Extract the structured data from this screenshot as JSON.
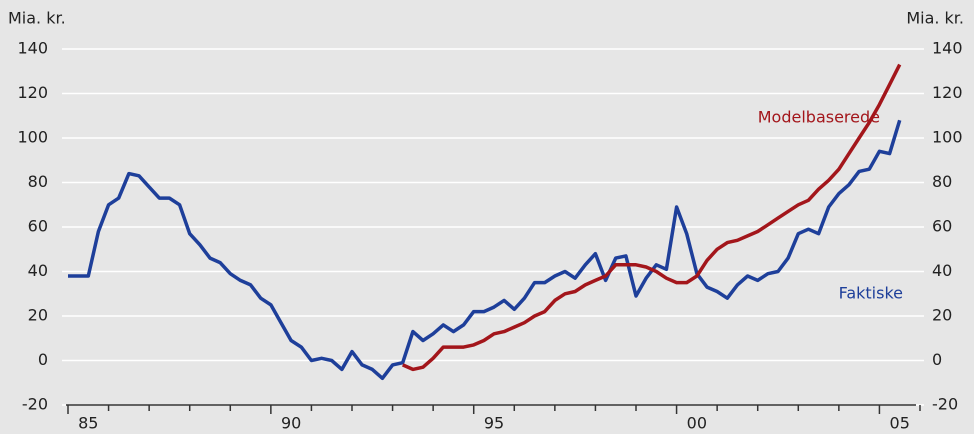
{
  "chart_data": {
    "type": "line",
    "y_label": "Mia. kr.",
    "y2_label": "Mia. kr.",
    "xlim": [
      1985,
      2006
    ],
    "xticks": [
      1985,
      1986,
      1987,
      1988,
      1989,
      1990,
      1991,
      1992,
      1993,
      1994,
      1995,
      1996,
      1997,
      1998,
      1999,
      2000,
      2001,
      2002,
      2003,
      2004,
      2005,
      2006
    ],
    "xtick_labels": [
      {
        "value": 1985.5,
        "label": "85"
      },
      {
        "value": 1990.5,
        "label": "90"
      },
      {
        "value": 1995.5,
        "label": "95"
      },
      {
        "value": 2000.5,
        "label": "00"
      },
      {
        "value": 2005.5,
        "label": "05"
      }
    ],
    "ylim": [
      -20,
      140
    ],
    "yticks": [
      -20,
      0,
      20,
      40,
      60,
      80,
      100,
      120,
      140
    ],
    "y2lim": [
      -20,
      140
    ],
    "y2ticks": [
      -20,
      0,
      20,
      40,
      60,
      80,
      100,
      120,
      140
    ],
    "grid": true,
    "x": [
      1985,
      1985.25,
      1985.5,
      1985.75,
      1986,
      1986.25,
      1986.5,
      1986.75,
      1987,
      1987.25,
      1987.5,
      1987.75,
      1988,
      1988.25,
      1988.5,
      1988.75,
      1989,
      1989.25,
      1989.5,
      1989.75,
      1990,
      1990.25,
      1990.5,
      1990.75,
      1991,
      1991.25,
      1991.5,
      1991.75,
      1992,
      1992.25,
      1992.5,
      1992.75,
      1993,
      1993.25,
      1993.5,
      1993.75,
      1994,
      1994.25,
      1994.5,
      1994.75,
      1995,
      1995.25,
      1995.5,
      1995.75,
      1996,
      1996.25,
      1996.5,
      1996.75,
      1997,
      1997.25,
      1997.5,
      1997.75,
      1998,
      1998.25,
      1998.5,
      1998.75,
      1999,
      1999.25,
      1999.5,
      1999.75,
      2000,
      2000.25,
      2000.5,
      2000.75,
      2001,
      2001.25,
      2001.5,
      2001.75,
      2002,
      2002.25,
      2002.5,
      2002.75,
      2003,
      2003.25,
      2003.5,
      2003.75,
      2004,
      2004.25,
      2004.5,
      2004.75,
      2005,
      2005.25,
      2005.5
    ],
    "series": [
      {
        "name": "Faktiske",
        "color": "#1e3f9a",
        "values": [
          38,
          38,
          38,
          58,
          70,
          73,
          84,
          83,
          78,
          73,
          73,
          70,
          57,
          52,
          46,
          44,
          39,
          36,
          34,
          28,
          25,
          17,
          9,
          6,
          0,
          1,
          0,
          -4,
          4,
          -2,
          -4,
          -8,
          -2,
          -1,
          13,
          9,
          12,
          16,
          13,
          16,
          22,
          22,
          24,
          27,
          23,
          28,
          35,
          35,
          38,
          40,
          37,
          43,
          48,
          36,
          46,
          47,
          29,
          37,
          43,
          41,
          69,
          57,
          39,
          33,
          31,
          28,
          34,
          38,
          36,
          39,
          40,
          46,
          57,
          59,
          57,
          69,
          75,
          79,
          85,
          86,
          94,
          93,
          108
        ]
      },
      {
        "name": "Modelbaserede",
        "color": "#a3161b",
        "values": [
          null,
          null,
          null,
          null,
          null,
          null,
          null,
          null,
          null,
          null,
          null,
          null,
          null,
          null,
          null,
          null,
          null,
          null,
          null,
          null,
          null,
          null,
          null,
          null,
          null,
          null,
          null,
          null,
          null,
          null,
          null,
          null,
          null,
          -2,
          -4,
          -3,
          1,
          6,
          6,
          6,
          7,
          9,
          12,
          13,
          15,
          17,
          20,
          22,
          27,
          30,
          31,
          34,
          36,
          38,
          43,
          43,
          43,
          42,
          40,
          37,
          35,
          35,
          38,
          45,
          50,
          53,
          54,
          56,
          58,
          61,
          64,
          67,
          70,
          72,
          77,
          81,
          86,
          93,
          100,
          107,
          115,
          124,
          133
        ]
      }
    ]
  }
}
